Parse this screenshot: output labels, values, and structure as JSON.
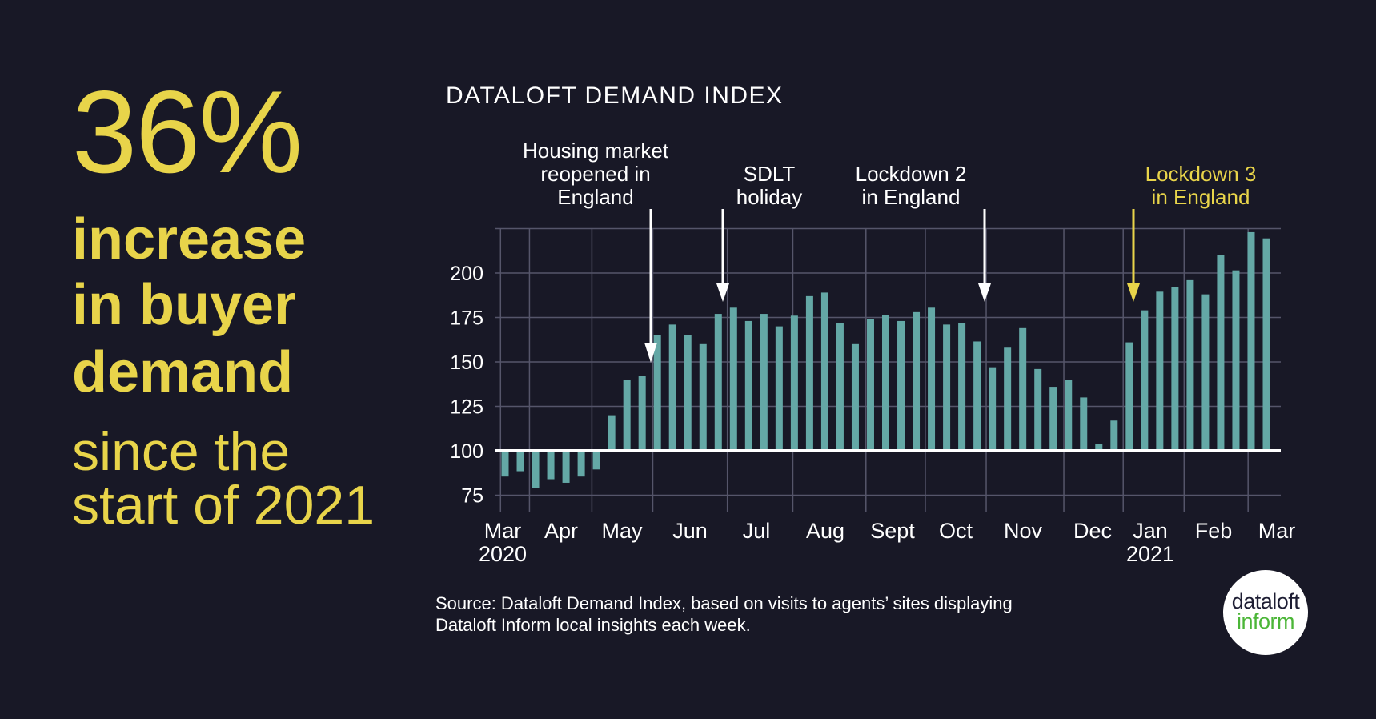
{
  "headline": {
    "figure": "36%",
    "bold_lines": [
      "increase",
      "in buyer",
      "demand"
    ],
    "light_lines": [
      "since the",
      "start of 2021"
    ]
  },
  "annotations": [
    {
      "lines": [
        "Housing market",
        "reopened in",
        "England"
      ],
      "color": "#ffffff"
    },
    {
      "lines": [
        "SDLT",
        "holiday"
      ],
      "color": "#ffffff"
    },
    {
      "lines": [
        "Lockdown 2",
        "in England"
      ],
      "color": "#ffffff"
    },
    {
      "lines": [
        "Lockdown 3",
        "in England"
      ],
      "color": "#e8d44a"
    }
  ],
  "source": [
    "Source: Dataloft Demand Index, based on visits to agents’ sites displaying",
    "Dataloft Inform local insights each week."
  ],
  "logo": {
    "line1": "dataloft",
    "line2": "inform"
  },
  "colors": {
    "background": "#181826",
    "accent": "#e8d44a",
    "bar": "#64a8a6",
    "baseline": "#ffffff",
    "logo_green": "#4cb638"
  },
  "chart_data": {
    "type": "bar",
    "title": "DATALOFT DEMAND INDEX",
    "baseline": 100,
    "ylim": [
      75,
      225
    ],
    "yticks": [
      75,
      100,
      125,
      150,
      175,
      200
    ],
    "grid": true,
    "xtick_labels": [
      "Mar",
      "Apr",
      "May",
      "Jun",
      "Jul",
      "Aug",
      "Sept",
      "Oct",
      "Nov",
      "Dec",
      "Jan",
      "Feb",
      "Mar"
    ],
    "year_labels": [
      {
        "month_index": 0,
        "label": "2020"
      },
      {
        "month_index": 10,
        "label": "2021"
      }
    ],
    "frequency": "weekly",
    "values": [
      85.5,
      88.5,
      79,
      84,
      82,
      85.5,
      89.5,
      120,
      140,
      142,
      165,
      171,
      165,
      160,
      177,
      180.5,
      173,
      177,
      170,
      176,
      187,
      189,
      172,
      160,
      174,
      176.5,
      173,
      178,
      180.5,
      171,
      172,
      161.5,
      147,
      158,
      169,
      146,
      136,
      140,
      130,
      104,
      117,
      161,
      179,
      189.5,
      192,
      196,
      188,
      210,
      201.5,
      223,
      219.5
    ]
  }
}
